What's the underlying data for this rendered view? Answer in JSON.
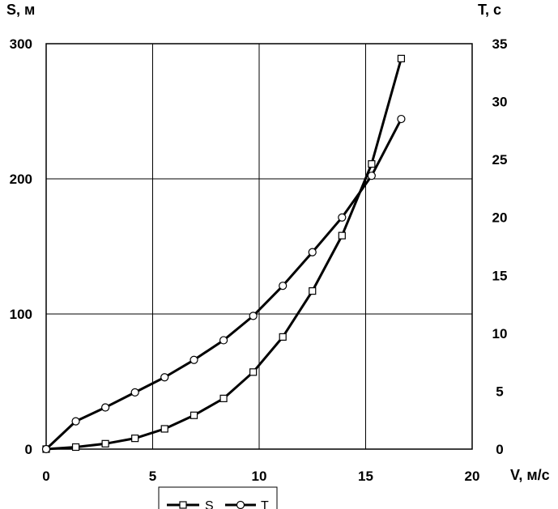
{
  "chart_data": {
    "type": "line",
    "xlabel": "V, м/с",
    "ylabel_left": "S, м",
    "ylabel_right": "T, с",
    "xlim": [
      0,
      20
    ],
    "ylim_left": [
      0,
      300
    ],
    "ylim_right": [
      0,
      35
    ],
    "x_ticks": [
      "0",
      "5",
      "10",
      "15",
      "20"
    ],
    "y_left_ticks": [
      "0",
      "100",
      "200",
      "300"
    ],
    "y_right_ticks": [
      "0",
      "5",
      "10",
      "15",
      "20",
      "25",
      "30",
      "35"
    ],
    "grid": true,
    "legend_position": "bottom",
    "series": [
      {
        "name": "S",
        "axis": "left",
        "marker": "square",
        "x": [
          0,
          1.39,
          2.78,
          4.17,
          5.56,
          6.94,
          8.33,
          9.72,
          11.11,
          12.5,
          13.89,
          15.28,
          16.67
        ],
        "y": [
          0,
          1.5,
          4,
          8,
          15,
          25,
          37.5,
          57,
          83,
          117,
          158,
          211,
          289
        ]
      },
      {
        "name": "T",
        "axis": "right",
        "marker": "circle",
        "x": [
          0,
          1.39,
          2.78,
          4.17,
          5.56,
          6.94,
          8.33,
          9.72,
          11.11,
          12.5,
          13.89,
          15.28,
          16.67
        ],
        "y": [
          0,
          2.4,
          3.6,
          4.9,
          6.2,
          7.7,
          9.4,
          11.5,
          14.1,
          17,
          20,
          23.6,
          28.5
        ]
      }
    ]
  }
}
